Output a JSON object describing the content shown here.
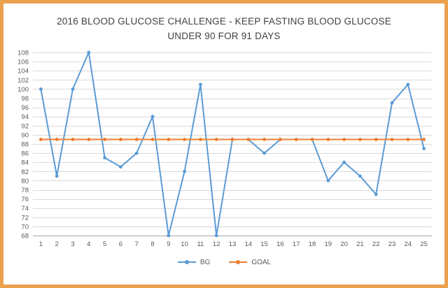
{
  "frame": {
    "border_color": "#E9A14D",
    "background": "#FFFFFF"
  },
  "chart_data": {
    "type": "line",
    "title": "2016 BLOOD GLUCOSE CHALLENGE - KEEP FASTING BLOOD GLUCOSE UNDER 90 FOR 91 DAYS",
    "title_lines": [
      "2016 BLOOD GLUCOSE CHALLENGE - KEEP FASTING BLOOD GLUCOSE",
      "UNDER 90 FOR 91 DAYS"
    ],
    "x": [
      1,
      2,
      3,
      4,
      5,
      6,
      7,
      8,
      9,
      10,
      11,
      12,
      13,
      14,
      15,
      16,
      17,
      18,
      19,
      20,
      21,
      22,
      23,
      24,
      25
    ],
    "series": [
      {
        "name": "BG",
        "color": "#5B9BD5",
        "values": [
          100,
          81,
          100,
          108,
          85,
          83,
          86,
          94,
          68,
          82,
          101,
          68,
          89,
          89,
          86,
          89,
          89,
          89,
          80,
          84,
          81,
          77,
          97,
          101,
          87
        ]
      },
      {
        "name": "GOAL",
        "color": "#ED7D31",
        "values": [
          89,
          89,
          89,
          89,
          89,
          89,
          89,
          89,
          89,
          89,
          89,
          89,
          89,
          89,
          89,
          89,
          89,
          89,
          89,
          89,
          89,
          89,
          89,
          89,
          89
        ]
      }
    ],
    "ylim": [
      68,
      108
    ],
    "ytick_step": 2,
    "grid": true,
    "gridline_color": "#D9D9D9",
    "axis_line_color": "#A6A6A6",
    "legend_position": "bottom"
  }
}
